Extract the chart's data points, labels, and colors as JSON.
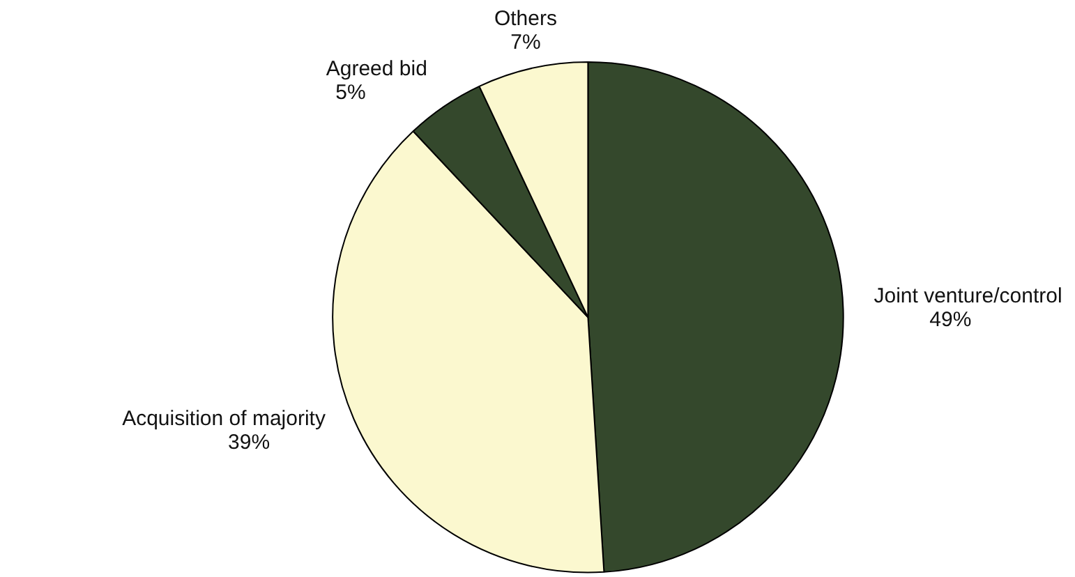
{
  "chart_data": {
    "type": "pie",
    "categories": [
      "Joint venture/control",
      "Acquisition of majority",
      "Agreed bid",
      "Others"
    ],
    "values": [
      49,
      39,
      5,
      7
    ],
    "value_labels": [
      "49%",
      "39%",
      "5%",
      "7%"
    ],
    "colors": [
      "#34482c",
      "#fbf8cf",
      "#34482c",
      "#fbf8cf"
    ]
  }
}
